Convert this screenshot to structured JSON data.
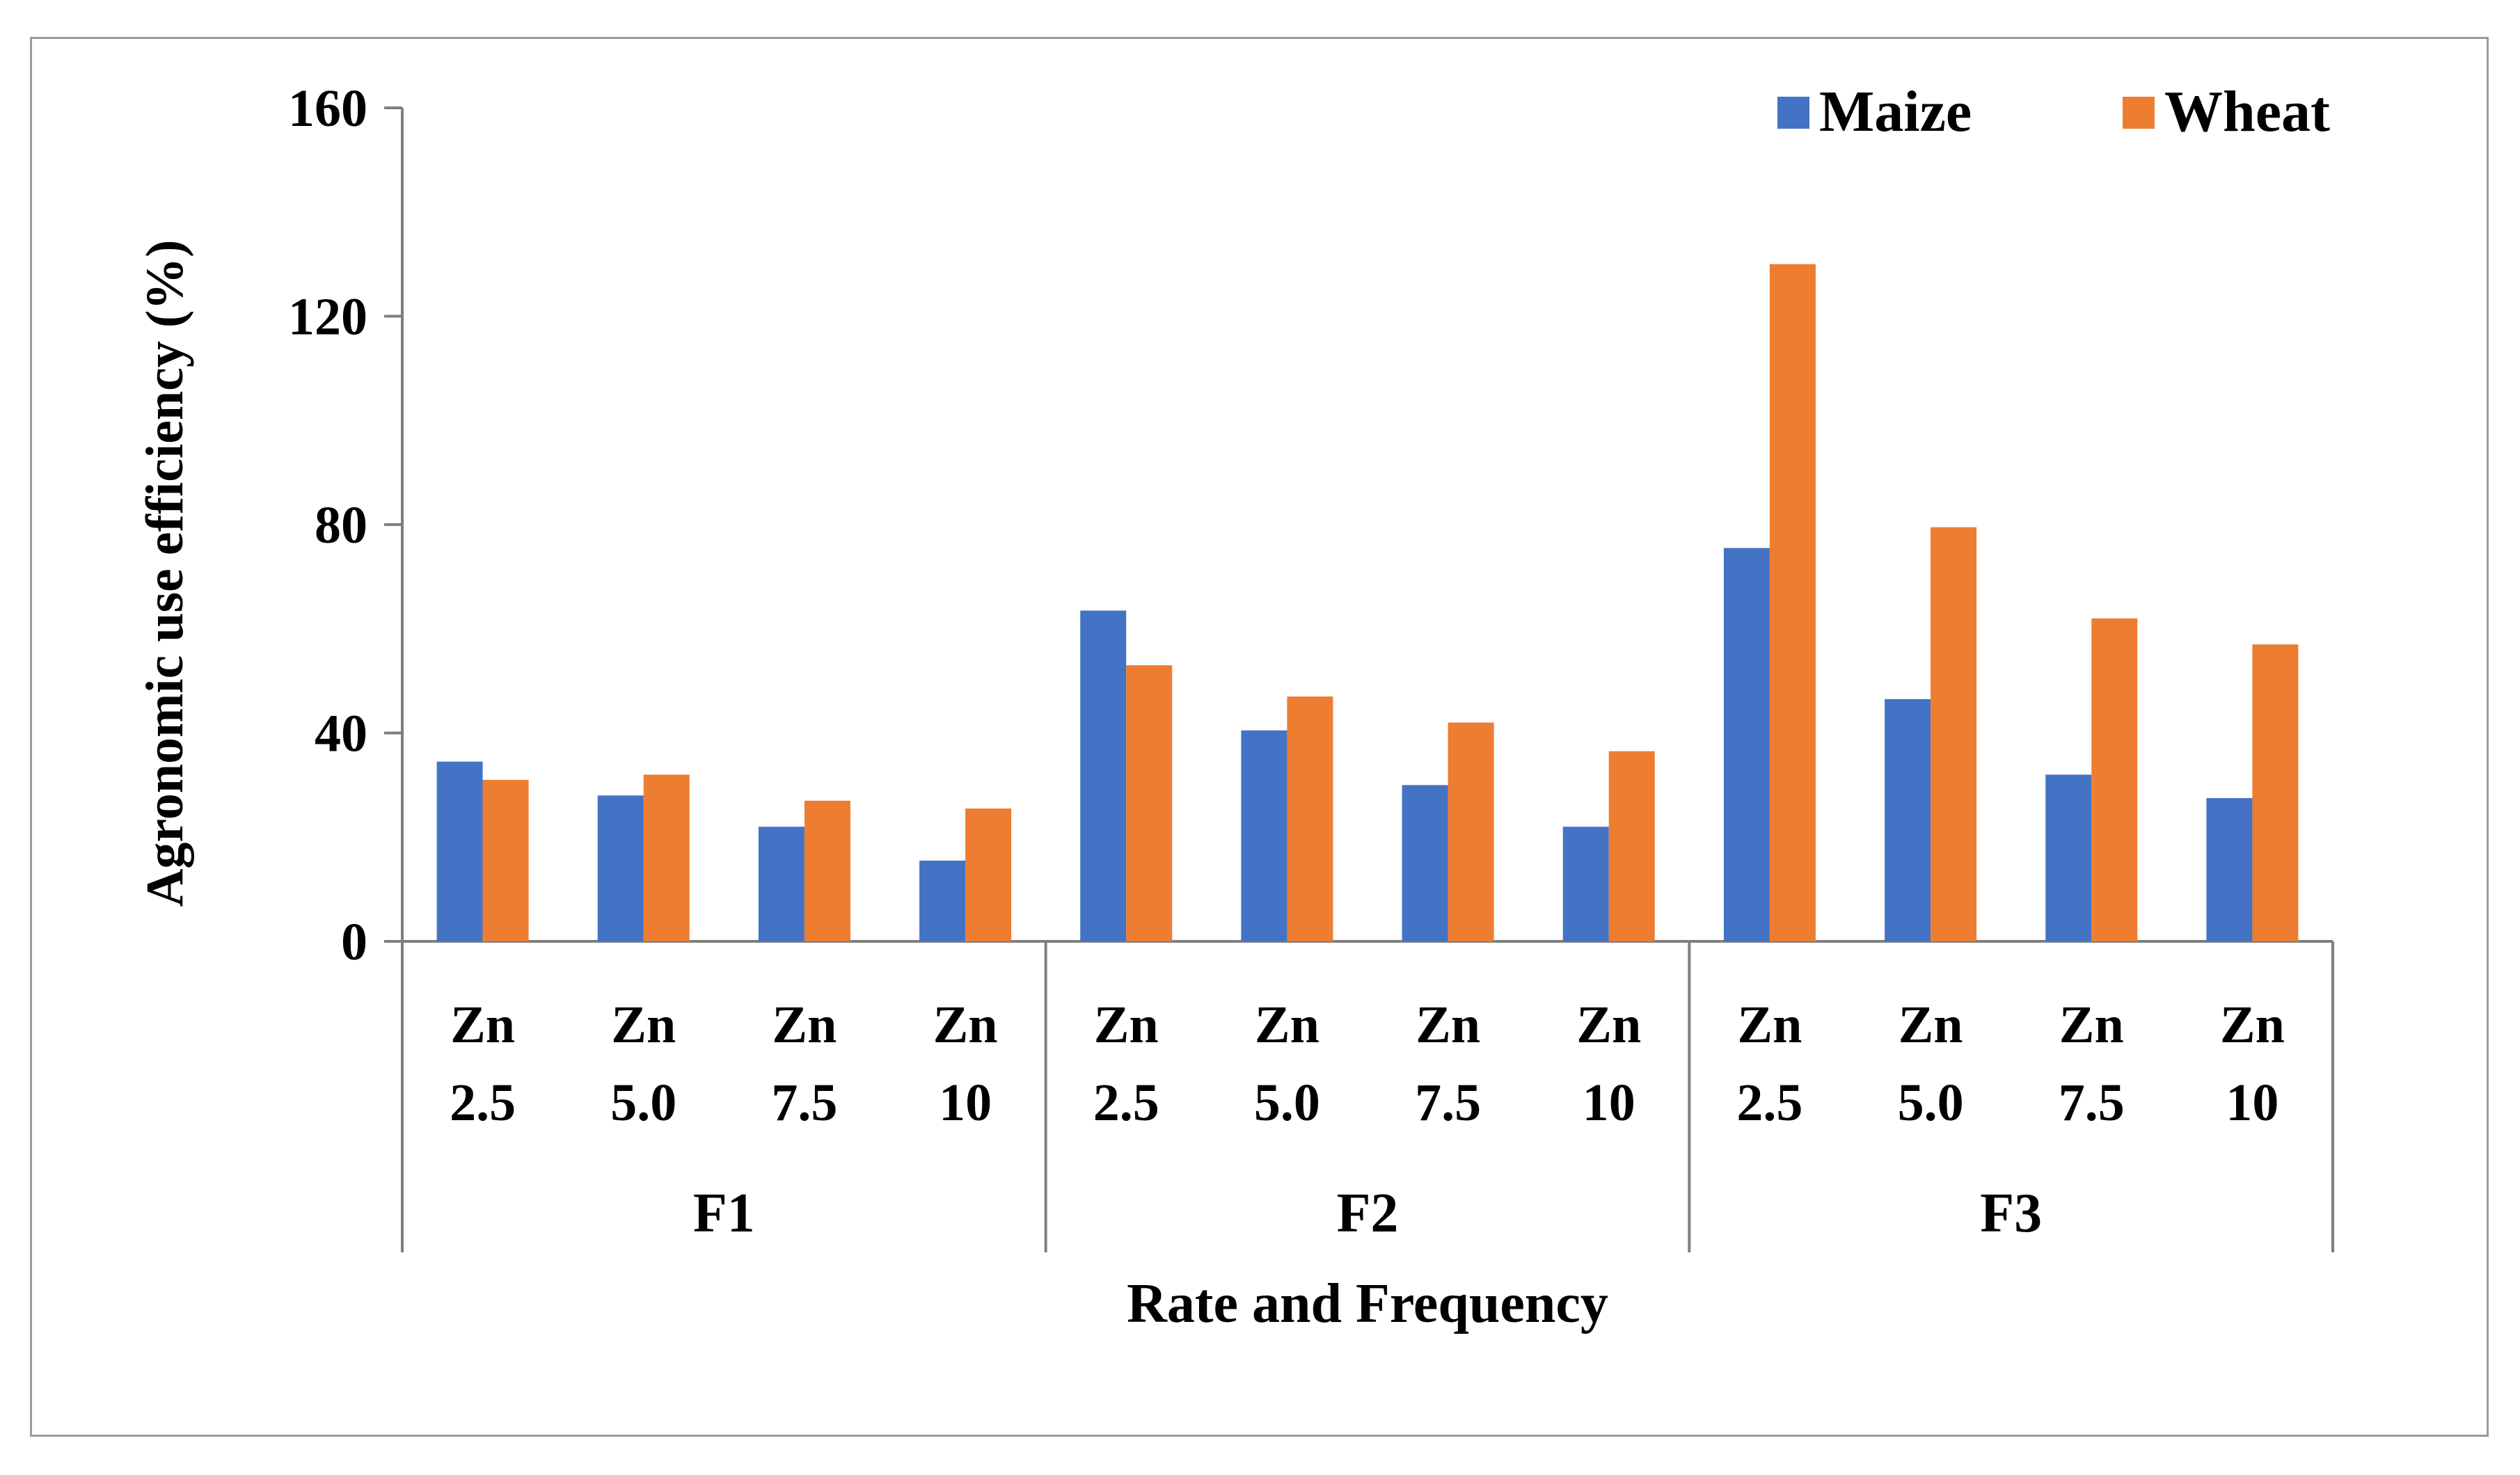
{
  "chart_data": {
    "type": "bar",
    "title": "",
    "ylabel": "Agronomic use efficiency (%)",
    "xlabel": "Rate and Frequency",
    "ylim": [
      0,
      160
    ],
    "yticks": [
      "0",
      "40",
      "80",
      "120",
      "160"
    ],
    "groups": [
      {
        "label": "F1",
        "categories": [
          [
            "Zn",
            "2.5"
          ],
          [
            "Zn",
            "5.0"
          ],
          [
            "Zn",
            "7.5"
          ],
          [
            "Zn",
            "10"
          ]
        ]
      },
      {
        "label": "F2",
        "categories": [
          [
            "Zn",
            "2.5"
          ],
          [
            "Zn",
            "5.0"
          ],
          [
            "Zn",
            "7.5"
          ],
          [
            "Zn",
            "10"
          ]
        ]
      },
      {
        "label": "F3",
        "categories": [
          [
            "Zn",
            "2.5"
          ],
          [
            "Zn",
            "5.0"
          ],
          [
            "Zn",
            "7.5"
          ],
          [
            "Zn",
            "10"
          ]
        ]
      }
    ],
    "series": [
      {
        "name": "Maize",
        "color": "#4472C4",
        "values": [
          34.5,
          28,
          22,
          15.5,
          63.5,
          40.5,
          30,
          22,
          75.5,
          46.5,
          32,
          27.5
        ]
      },
      {
        "name": "Wheat",
        "color": "#ED7D31",
        "values": [
          31,
          32,
          27,
          25.5,
          53,
          47,
          42,
          36.5,
          130,
          79.5,
          62,
          57
        ]
      }
    ],
    "legend_position": "top-right",
    "grid": false
  }
}
